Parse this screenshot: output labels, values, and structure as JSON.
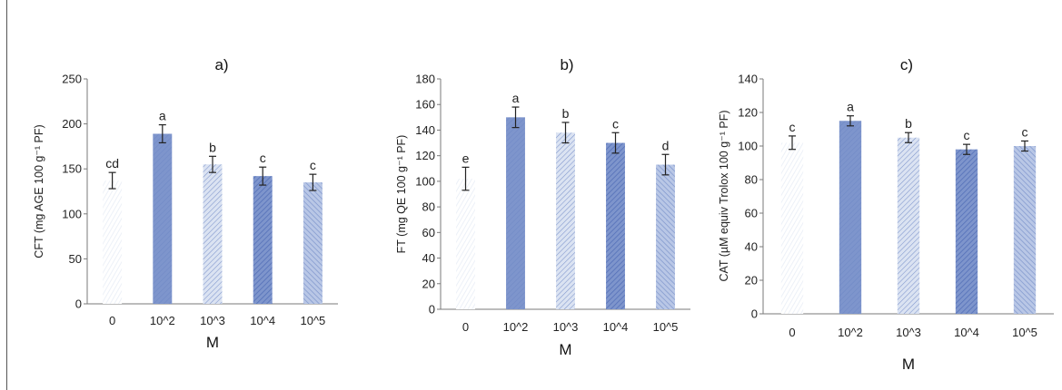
{
  "colors": {
    "bar_dark": "#5470b8",
    "bar_mid": "#7e95cc",
    "bar_light": "#c9d4ec",
    "bar_pale": "#e8edf6",
    "axis": "#7a7a7a",
    "error_bar": "#222222"
  },
  "chart_data": [
    {
      "type": "bar",
      "title": "a)",
      "xlabel": "M",
      "ylabel": "CFT (mg AGE 100 g⁻¹ PF)",
      "categories": [
        "0",
        "10^2",
        "10^3",
        "10^4",
        "10^5"
      ],
      "values": [
        137,
        189,
        155,
        142,
        135
      ],
      "errors": [
        9,
        10,
        9,
        10,
        9
      ],
      "letters": [
        "cd",
        "a",
        "b",
        "c",
        "c"
      ],
      "ylim": [
        0,
        250
      ],
      "yticks": [
        0,
        50,
        100,
        150,
        200,
        250
      ],
      "grid": false
    },
    {
      "type": "bar",
      "title": "b)",
      "xlabel": "M",
      "ylabel": "FT (mg QE 100 g⁻¹ PF)",
      "categories": [
        "0",
        "10^2",
        "10^3",
        "10^4",
        "10^5"
      ],
      "values": [
        102,
        150,
        138,
        130,
        113
      ],
      "errors": [
        9,
        8,
        8,
        8,
        8
      ],
      "letters": [
        "e",
        "a",
        "b",
        "c",
        "d"
      ],
      "ylim": [
        0,
        180
      ],
      "yticks": [
        0,
        20,
        40,
        60,
        80,
        100,
        120,
        140,
        160,
        180
      ],
      "grid": false
    },
    {
      "type": "bar",
      "title": "c)",
      "xlabel": "M",
      "ylabel": "CAT (µM equiv Trolox 100 g⁻¹ PF)",
      "categories": [
        "0",
        "10^2",
        "10^3",
        "10^4",
        "10^5"
      ],
      "values": [
        102,
        115,
        105,
        98,
        100
      ],
      "errors": [
        4,
        3,
        3,
        3,
        3
      ],
      "letters": [
        "c",
        "a",
        "b",
        "c",
        "c"
      ],
      "ylim": [
        0,
        140
      ],
      "yticks": [
        0,
        20,
        40,
        60,
        80,
        100,
        120,
        140
      ],
      "grid": false
    }
  ]
}
